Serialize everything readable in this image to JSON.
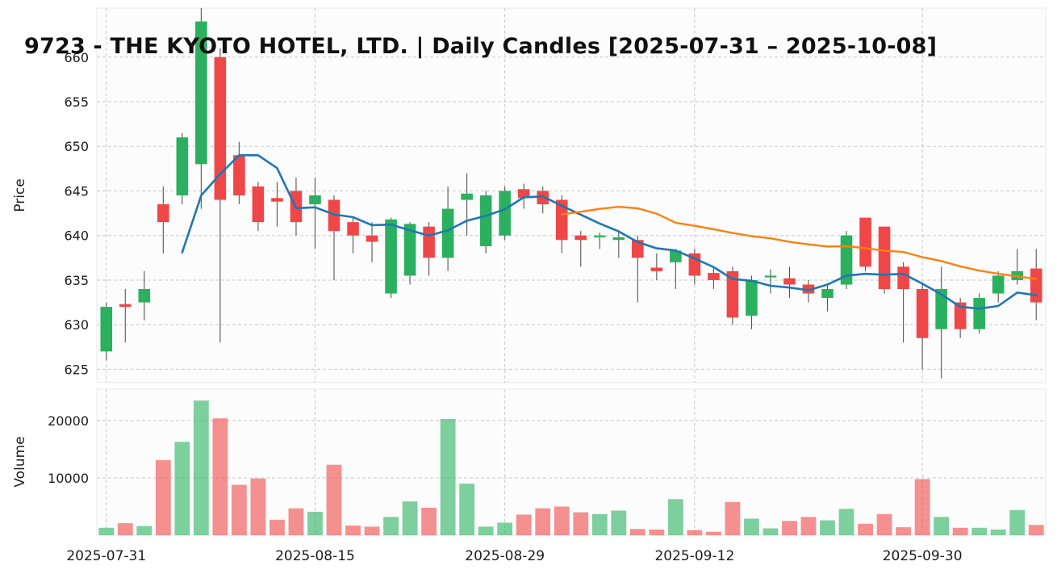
{
  "chart_data": {
    "type": "candlestick",
    "title": "9723 - THE KYOTO HOTEL, LTD. | Daily Candles [2025-07-31 – 2025-10-08]",
    "ylabel_price": "Price",
    "ylabel_volume": "Volume",
    "price_ticks": [
      625,
      630,
      635,
      640,
      645,
      650,
      655,
      660
    ],
    "volume_ticks": [
      10000,
      20000
    ],
    "price_ylim": [
      623.5,
      665.5
    ],
    "volume_ylim": [
      0,
      25500
    ],
    "x_tick_labels": [
      "2025-07-31",
      "2025-08-15",
      "2025-08-29",
      "2025-09-12",
      "2025-09-30"
    ],
    "x_tick_indices": [
      0,
      11,
      21,
      31,
      43
    ],
    "ma_short_period": 5,
    "ma_long_period": 25,
    "grid": true,
    "legend": "none",
    "colors": {
      "up": "#2ab05f",
      "down": "#ef4747",
      "wick": "#555555",
      "ma_short": "#1f77b4",
      "ma_long": "#ff7f0e",
      "grid": "#c9c9c9",
      "tick": "#1c1c1c",
      "panel_bg": "#fcfcfc",
      "panel_border": "#e8e8e8"
    },
    "ohlcv": [
      {
        "date": "2025-07-31",
        "o": 627.0,
        "h": 632.5,
        "l": 626.0,
        "c": 632.0,
        "v": 1300
      },
      {
        "date": "2025-08-01",
        "o": 632.3,
        "h": 634.0,
        "l": 628.0,
        "c": 632.0,
        "v": 2100
      },
      {
        "date": "2025-08-04",
        "o": 632.5,
        "h": 636.0,
        "l": 630.5,
        "c": 634.0,
        "v": 1600
      },
      {
        "date": "2025-08-05",
        "o": 643.5,
        "h": 645.5,
        "l": 638.0,
        "c": 641.5,
        "v": 13100
      },
      {
        "date": "2025-08-06",
        "o": 644.5,
        "h": 651.5,
        "l": 643.5,
        "c": 651.0,
        "v": 16300
      },
      {
        "date": "2025-08-07",
        "o": 648.0,
        "h": 665.5,
        "l": 643.0,
        "c": 664.0,
        "v": 23500
      },
      {
        "date": "2025-08-08",
        "o": 660.0,
        "h": 661.0,
        "l": 628.0,
        "c": 644.0,
        "v": 20400
      },
      {
        "date": "2025-08-11",
        "o": 649.0,
        "h": 650.5,
        "l": 643.5,
        "c": 644.5,
        "v": 8800
      },
      {
        "date": "2025-08-12",
        "o": 645.5,
        "h": 646.0,
        "l": 640.5,
        "c": 641.5,
        "v": 9900
      },
      {
        "date": "2025-08-13",
        "o": 644.2,
        "h": 646.0,
        "l": 641.0,
        "c": 643.8,
        "v": 2700
      },
      {
        "date": "2025-08-14",
        "o": 645.0,
        "h": 646.5,
        "l": 640.0,
        "c": 641.5,
        "v": 4700
      },
      {
        "date": "2025-08-15",
        "o": 643.5,
        "h": 646.5,
        "l": 638.5,
        "c": 644.5,
        "v": 4100
      },
      {
        "date": "2025-08-18",
        "o": 644.0,
        "h": 644.5,
        "l": 635.0,
        "c": 640.5,
        "v": 12300
      },
      {
        "date": "2025-08-19",
        "o": 641.5,
        "h": 642.0,
        "l": 638.0,
        "c": 640.0,
        "v": 1700
      },
      {
        "date": "2025-08-20",
        "o": 640.0,
        "h": 641.5,
        "l": 637.0,
        "c": 639.3,
        "v": 1500
      },
      {
        "date": "2025-08-21",
        "o": 633.5,
        "h": 642.0,
        "l": 633.0,
        "c": 641.8,
        "v": 3200
      },
      {
        "date": "2025-08-22",
        "o": 635.5,
        "h": 641.5,
        "l": 634.5,
        "c": 641.3,
        "v": 5900
      },
      {
        "date": "2025-08-25",
        "o": 641.0,
        "h": 641.5,
        "l": 635.5,
        "c": 637.5,
        "v": 4800
      },
      {
        "date": "2025-08-26",
        "o": 637.5,
        "h": 645.5,
        "l": 636.0,
        "c": 643.0,
        "v": 20300
      },
      {
        "date": "2025-08-27",
        "o": 644.0,
        "h": 647.0,
        "l": 640.0,
        "c": 644.7,
        "v": 9000
      },
      {
        "date": "2025-08-28",
        "o": 638.8,
        "h": 645.0,
        "l": 638.0,
        "c": 644.5,
        "v": 1500
      },
      {
        "date": "2025-08-29",
        "o": 640.0,
        "h": 645.5,
        "l": 639.5,
        "c": 645.0,
        "v": 2200
      },
      {
        "date": "2025-09-01",
        "o": 645.2,
        "h": 645.8,
        "l": 643.0,
        "c": 644.2,
        "v": 3600
      },
      {
        "date": "2025-09-02",
        "o": 645.0,
        "h": 645.5,
        "l": 642.5,
        "c": 643.5,
        "v": 4700
      },
      {
        "date": "2025-09-03",
        "o": 644.0,
        "h": 644.5,
        "l": 638.0,
        "c": 639.5,
        "v": 5000
      },
      {
        "date": "2025-09-04",
        "o": 640.0,
        "h": 640.5,
        "l": 636.5,
        "c": 639.5,
        "v": 4000
      },
      {
        "date": "2025-09-05",
        "o": 639.8,
        "h": 640.3,
        "l": 638.5,
        "c": 640.0,
        "v": 3700
      },
      {
        "date": "2025-09-08",
        "o": 639.5,
        "h": 640.5,
        "l": 637.5,
        "c": 639.8,
        "v": 4300
      },
      {
        "date": "2025-09-09",
        "o": 639.5,
        "h": 640.0,
        "l": 632.5,
        "c": 637.5,
        "v": 1100
      },
      {
        "date": "2025-09-10",
        "o": 636.4,
        "h": 638.0,
        "l": 635.0,
        "c": 636.0,
        "v": 1000
      },
      {
        "date": "2025-09-11",
        "o": 637.0,
        "h": 638.5,
        "l": 634.0,
        "c": 638.3,
        "v": 6300
      },
      {
        "date": "2025-09-12",
        "o": 638.0,
        "h": 638.5,
        "l": 634.5,
        "c": 635.5,
        "v": 900
      },
      {
        "date": "2025-09-15",
        "o": 635.8,
        "h": 636.3,
        "l": 634.0,
        "c": 635.0,
        "v": 600
      },
      {
        "date": "2025-09-16",
        "o": 636.0,
        "h": 636.5,
        "l": 630.0,
        "c": 630.8,
        "v": 5800
      },
      {
        "date": "2025-09-17",
        "o": 631.0,
        "h": 635.5,
        "l": 629.5,
        "c": 635.0,
        "v": 2900
      },
      {
        "date": "2025-09-18",
        "o": 635.5,
        "h": 636.2,
        "l": 633.5,
        "c": 635.5,
        "v": 1200
      },
      {
        "date": "2025-09-19",
        "o": 635.2,
        "h": 636.5,
        "l": 633.0,
        "c": 634.5,
        "v": 2500
      },
      {
        "date": "2025-09-22",
        "o": 634.5,
        "h": 635.0,
        "l": 632.5,
        "c": 633.5,
        "v": 3200
      },
      {
        "date": "2025-09-23",
        "o": 633.0,
        "h": 634.5,
        "l": 631.5,
        "c": 634.0,
        "v": 2600
      },
      {
        "date": "2025-09-24",
        "o": 634.5,
        "h": 640.5,
        "l": 634.0,
        "c": 640.0,
        "v": 4600
      },
      {
        "date": "2025-09-25",
        "o": 642.0,
        "h": 642.0,
        "l": 636.0,
        "c": 636.5,
        "v": 2000
      },
      {
        "date": "2025-09-26",
        "o": 641.0,
        "h": 641.0,
        "l": 633.5,
        "c": 634.0,
        "v": 3700
      },
      {
        "date": "2025-09-29",
        "o": 636.5,
        "h": 637.0,
        "l": 628.0,
        "c": 634.0,
        "v": 1400
      },
      {
        "date": "2025-09-30",
        "o": 634.0,
        "h": 634.5,
        "l": 625.0,
        "c": 628.5,
        "v": 9800
      },
      {
        "date": "2025-10-01",
        "o": 629.5,
        "h": 636.5,
        "l": 624.0,
        "c": 634.0,
        "v": 3200
      },
      {
        "date": "2025-10-02",
        "o": 632.5,
        "h": 633.0,
        "l": 628.5,
        "c": 629.5,
        "v": 1300
      },
      {
        "date": "2025-10-03",
        "o": 629.5,
        "h": 633.5,
        "l": 629.0,
        "c": 633.0,
        "v": 1300
      },
      {
        "date": "2025-10-06",
        "o": 633.5,
        "h": 636.0,
        "l": 632.5,
        "c": 635.5,
        "v": 1000
      },
      {
        "date": "2025-10-07",
        "o": 635.0,
        "h": 638.5,
        "l": 634.5,
        "c": 636.0,
        "v": 4400
      },
      {
        "date": "2025-10-08",
        "o": 636.3,
        "h": 638.5,
        "l": 630.5,
        "c": 632.5,
        "v": 1800
      }
    ]
  }
}
